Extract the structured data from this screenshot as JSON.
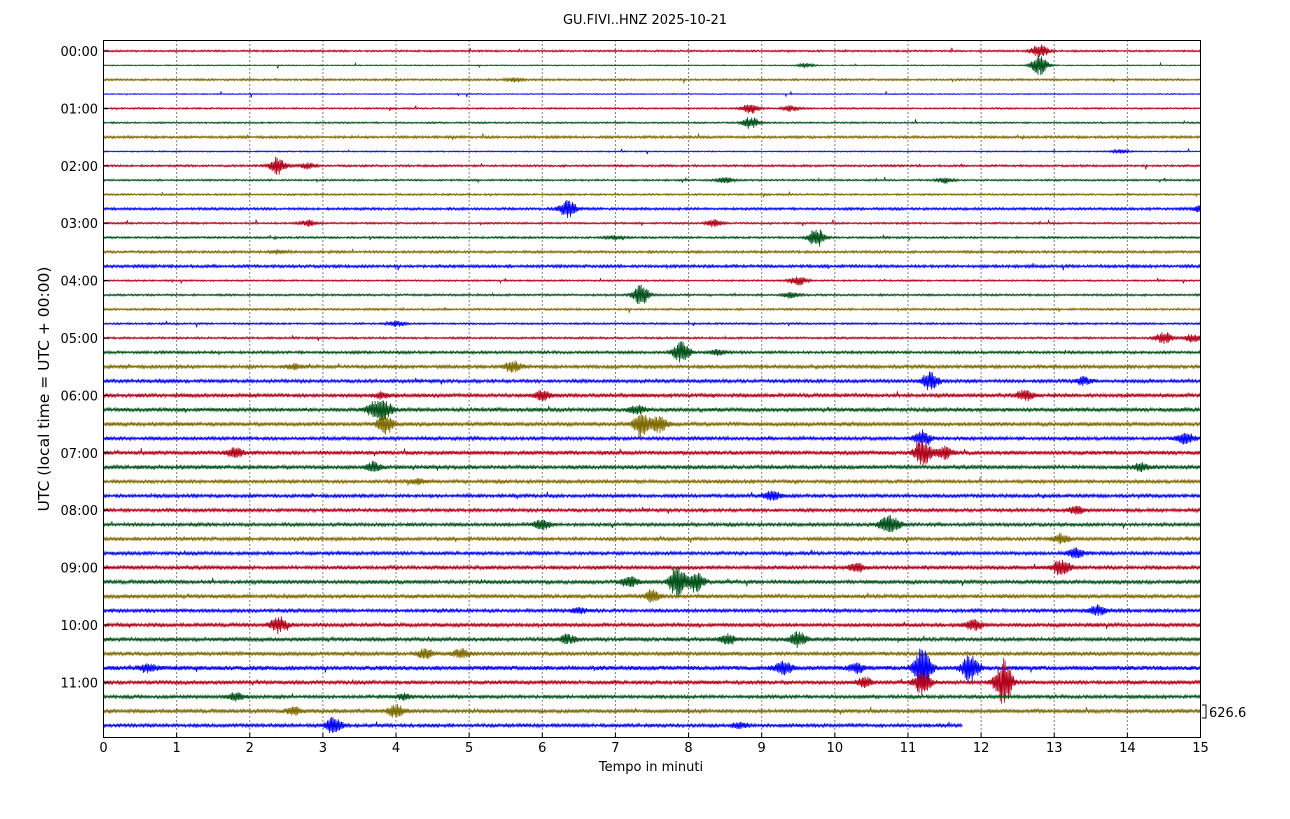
{
  "chart_data": {
    "type": "line",
    "title": "GU.FIVI..HNZ 2025-10-21",
    "xlabel": "Tempo in minuti",
    "ylabel": "UTC (local time = UTC + 00:00)",
    "xlim": [
      0,
      15
    ],
    "x_ticks": [
      "0",
      "1",
      "2",
      "3",
      "4",
      "5",
      "6",
      "7",
      "8",
      "9",
      "10",
      "11",
      "12",
      "13",
      "14",
      "15"
    ],
    "hour_labels": [
      "00:00",
      "01:00",
      "02:00",
      "03:00",
      "04:00",
      "05:00",
      "06:00",
      "07:00",
      "08:00",
      "09:00",
      "10:00",
      "11:00"
    ],
    "grid": "vertical dotted at each minute",
    "scale_label": "626.6",
    "colors": [
      "#b2001a",
      "#00521a",
      "#7f6a00",
      "#0000ff"
    ],
    "trace_minutes": 15,
    "traces": [
      {
        "start": "00:00",
        "level": 0.9,
        "events": [
          [
            12.8,
            7
          ]
        ]
      },
      {
        "start": "00:15",
        "level": 0.5,
        "events": [
          [
            9.6,
            2
          ],
          [
            12.8,
            10
          ]
        ]
      },
      {
        "start": "00:30",
        "level": 1.0,
        "events": [
          [
            5.6,
            2
          ]
        ]
      },
      {
        "start": "00:45",
        "level": 0.5,
        "events": []
      },
      {
        "start": "01:00",
        "level": 0.8,
        "events": [
          [
            8.85,
            5
          ],
          [
            9.4,
            3
          ]
        ]
      },
      {
        "start": "01:15",
        "level": 0.8,
        "events": [
          [
            8.85,
            6
          ]
        ]
      },
      {
        "start": "01:30",
        "level": 1.2,
        "events": []
      },
      {
        "start": "01:45",
        "level": 0.6,
        "events": [
          [
            13.9,
            2
          ]
        ]
      },
      {
        "start": "02:00",
        "level": 1.0,
        "events": [
          [
            2.38,
            9
          ],
          [
            2.8,
            3
          ]
        ]
      },
      {
        "start": "02:15",
        "level": 0.9,
        "events": [
          [
            8.5,
            3
          ],
          [
            11.5,
            3
          ]
        ]
      },
      {
        "start": "02:30",
        "level": 0.9,
        "events": []
      },
      {
        "start": "02:45",
        "level": 1.2,
        "events": [
          [
            6.35,
            9
          ],
          [
            15.0,
            3
          ]
        ]
      },
      {
        "start": "03:00",
        "level": 0.9,
        "events": [
          [
            2.8,
            3
          ],
          [
            8.35,
            4
          ]
        ]
      },
      {
        "start": "03:15",
        "level": 1.0,
        "events": [
          [
            9.75,
            10
          ],
          [
            7.0,
            2
          ]
        ]
      },
      {
        "start": "03:30",
        "level": 1.2,
        "events": [
          [
            2.4,
            2
          ]
        ]
      },
      {
        "start": "03:45",
        "level": 1.4,
        "events": []
      },
      {
        "start": "04:00",
        "level": 0.8,
        "events": [
          [
            9.5,
            5
          ]
        ]
      },
      {
        "start": "04:15",
        "level": 1.0,
        "events": [
          [
            7.35,
            10
          ],
          [
            9.4,
            3
          ]
        ]
      },
      {
        "start": "04:30",
        "level": 1.0,
        "events": []
      },
      {
        "start": "04:45",
        "level": 0.9,
        "events": [
          [
            4.0,
            3
          ]
        ]
      },
      {
        "start": "05:00",
        "level": 1.0,
        "events": [
          [
            14.5,
            6
          ],
          [
            14.9,
            4
          ]
        ]
      },
      {
        "start": "05:15",
        "level": 1.3,
        "events": [
          [
            7.9,
            11
          ],
          [
            8.4,
            3
          ]
        ]
      },
      {
        "start": "05:30",
        "level": 1.6,
        "events": [
          [
            5.6,
            6
          ],
          [
            2.6,
            3
          ]
        ]
      },
      {
        "start": "05:45",
        "level": 1.6,
        "events": [
          [
            11.3,
            9
          ],
          [
            13.4,
            4
          ]
        ]
      },
      {
        "start": "06:00",
        "level": 1.8,
        "events": [
          [
            6.0,
            5
          ],
          [
            12.6,
            5
          ],
          [
            3.8,
            3
          ]
        ]
      },
      {
        "start": "06:15",
        "level": 1.8,
        "events": [
          [
            3.7,
            7
          ],
          [
            3.85,
            9
          ],
          [
            7.3,
            4
          ]
        ]
      },
      {
        "start": "06:30",
        "level": 1.8,
        "events": [
          [
            3.85,
            10
          ],
          [
            7.35,
            12
          ],
          [
            7.6,
            8
          ]
        ]
      },
      {
        "start": "06:45",
        "level": 1.6,
        "events": [
          [
            11.2,
            8
          ],
          [
            14.8,
            6
          ]
        ]
      },
      {
        "start": "07:00",
        "level": 1.9,
        "events": [
          [
            11.2,
            14
          ],
          [
            1.8,
            5
          ],
          [
            11.5,
            6
          ]
        ]
      },
      {
        "start": "07:15",
        "level": 1.8,
        "events": [
          [
            3.7,
            5
          ],
          [
            14.2,
            4
          ]
        ]
      },
      {
        "start": "07:30",
        "level": 1.6,
        "events": [
          [
            4.3,
            3
          ]
        ]
      },
      {
        "start": "07:45",
        "level": 1.6,
        "events": [
          [
            9.15,
            5
          ]
        ]
      },
      {
        "start": "08:00",
        "level": 1.6,
        "events": [
          [
            13.3,
            4
          ]
        ]
      },
      {
        "start": "08:15",
        "level": 1.6,
        "events": [
          [
            6.0,
            5
          ],
          [
            10.7,
            6
          ],
          [
            10.8,
            5
          ]
        ]
      },
      {
        "start": "08:30",
        "level": 1.6,
        "events": [
          [
            13.1,
            5
          ]
        ]
      },
      {
        "start": "08:45",
        "level": 1.6,
        "events": [
          [
            13.3,
            5
          ]
        ]
      },
      {
        "start": "09:00",
        "level": 1.8,
        "events": [
          [
            13.1,
            8
          ],
          [
            10.3,
            4
          ]
        ]
      },
      {
        "start": "09:15",
        "level": 1.8,
        "events": [
          [
            7.85,
            16
          ],
          [
            8.1,
            10
          ],
          [
            7.2,
            5
          ]
        ]
      },
      {
        "start": "09:30",
        "level": 1.8,
        "events": [
          [
            7.5,
            6
          ]
        ]
      },
      {
        "start": "09:45",
        "level": 1.6,
        "events": [
          [
            13.6,
            5
          ],
          [
            6.5,
            3
          ]
        ]
      },
      {
        "start": "10:00",
        "level": 1.8,
        "events": [
          [
            2.4,
            8
          ],
          [
            11.9,
            5
          ]
        ]
      },
      {
        "start": "10:15",
        "level": 1.8,
        "events": [
          [
            9.5,
            8
          ],
          [
            6.35,
            5
          ],
          [
            8.55,
            5
          ]
        ]
      },
      {
        "start": "10:30",
        "level": 1.8,
        "events": [
          [
            4.4,
            5
          ],
          [
            4.9,
            5
          ]
        ]
      },
      {
        "start": "10:45",
        "level": 2.2,
        "events": [
          [
            11.2,
            22
          ],
          [
            11.85,
            14
          ],
          [
            9.3,
            6
          ],
          [
            10.3,
            5
          ],
          [
            0.6,
            4
          ]
        ]
      },
      {
        "start": "11:00",
        "level": 1.8,
        "events": [
          [
            12.3,
            26
          ],
          [
            11.2,
            12
          ],
          [
            10.4,
            5
          ]
        ]
      },
      {
        "start": "11:15",
        "level": 1.6,
        "events": [
          [
            1.8,
            4
          ],
          [
            4.1,
            3
          ]
        ]
      },
      {
        "start": "11:30",
        "level": 1.8,
        "events": [
          [
            4.0,
            6
          ],
          [
            2.6,
            4
          ]
        ]
      },
      {
        "start": "11:45",
        "level": 1.6,
        "events": [
          [
            3.15,
            8
          ],
          [
            8.7,
            3
          ]
        ],
        "end": 11.75
      }
    ]
  }
}
